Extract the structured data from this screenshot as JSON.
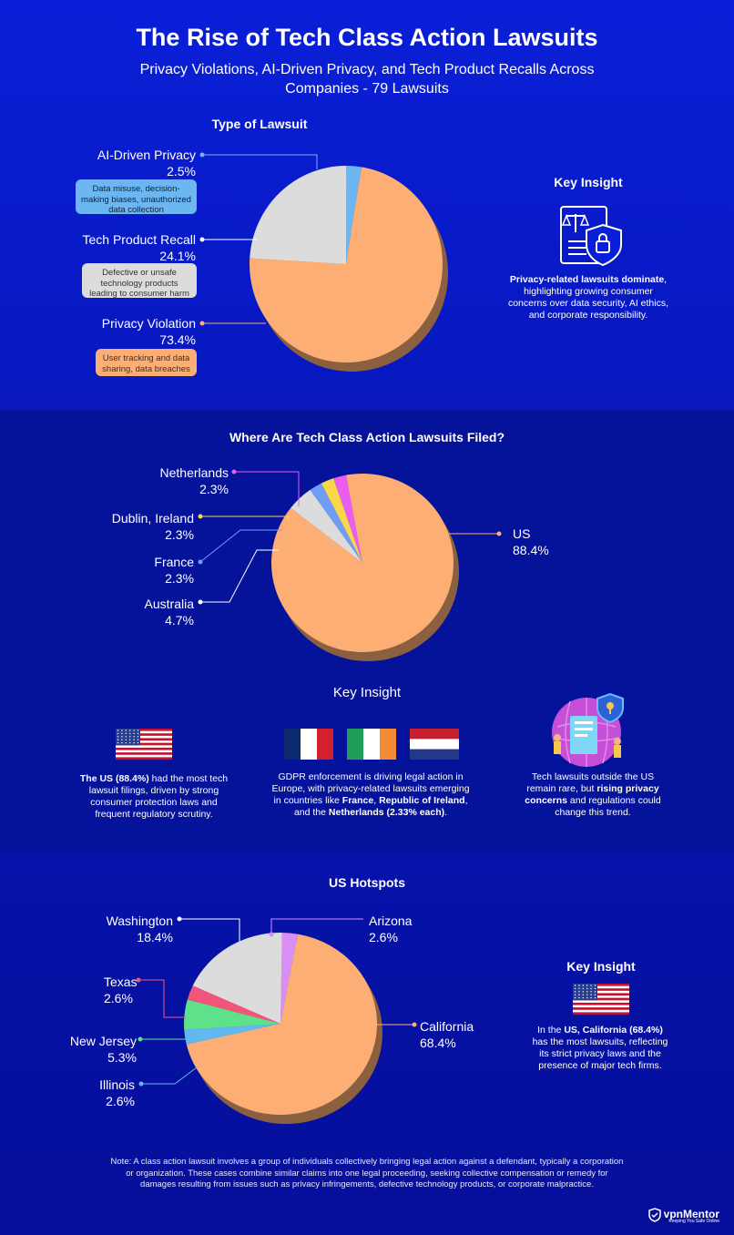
{
  "header": {
    "title": "The Rise of Tech Class Action Lawsuits",
    "subtitle": "Privacy Violations, AI-Driven Privacy, and Tech Product Recalls Across Companies - 79 Lawsuits"
  },
  "section1": {
    "title": "Type of Lawsuit",
    "insight_title": "Key Insight",
    "insight_bold": "Privacy-related lawsuits dominate",
    "insight_text": ", highlighting growing consumer concerns over data security, AI ethics, and corporate responsibility.",
    "descriptions": [
      "Data misuse, decision-making biases, unauthorized data collection",
      "Defective or unsafe technology products leading to consumer harm",
      "User tracking and data sharing, data breaches"
    ]
  },
  "section2": {
    "title": "Where Are Tech Class Action Lawsuits Filed?",
    "insight_title": "Key Insight",
    "insight1_bold": "The US (88.4%)",
    "insight1_text": " had the most tech lawsuit filings, driven by strong consumer protection laws and frequent regulatory scrutiny.",
    "insight2_a": "GDPR enforcement is driving legal action in Europe, with privacy-related lawsuits emerging in countries like ",
    "insight2_b1": "France",
    "insight2_c": ", ",
    "insight2_b2": "Republic of Ireland",
    "insight2_d": ", and the ",
    "insight2_b3": "Netherlands (2.33% each)",
    "insight2_e": ".",
    "insight3_a": "Tech lawsuits outside the US remain rare, but ",
    "insight3_bold": "rising privacy concerns",
    "insight3_b": " and regulations could change this trend."
  },
  "section3": {
    "title": "US Hotspots",
    "insight_title": "Key Insight",
    "insight_a": "In the ",
    "insight_bold": "US, California (68.4%)",
    "insight_b": " has the most lawsuits, reflecting its strict privacy laws and the presence of major tech firms."
  },
  "footer": {
    "note": "Note: A class action lawsuit involves a group of individuals collectively bringing legal action against a defendant, typically a corporation or organization. These cases combine similar claims into one legal proceeding, seeking collective compensation or remedy for damages resulting from issues such as privacy infringements, defective technology products, or corporate malpractice.",
    "brand": "vpnMentor",
    "tagline": "Keeping You Safe Online"
  },
  "chart_data": [
    {
      "type": "pie",
      "title": "Type of Lawsuit",
      "categories": [
        "AI-Driven Privacy",
        "Tech Product Recall",
        "Privacy Violation"
      ],
      "values": [
        2.5,
        24.1,
        73.4
      ],
      "labels": [
        "2.5%",
        "24.1%",
        "73.4%"
      ],
      "colors": [
        "#6cb6f2",
        "#dcdcdc",
        "#fdae74"
      ]
    },
    {
      "type": "pie",
      "title": "Where Are Tech Class Action Lawsuits Filed?",
      "categories": [
        "Netherlands",
        "Dublin, Ireland",
        "France",
        "Australia",
        "US"
      ],
      "values": [
        2.3,
        2.3,
        2.3,
        4.7,
        88.4
      ],
      "labels": [
        "2.3%",
        "2.3%",
        "2.3%",
        "4.7%",
        "88.4%"
      ],
      "colors": [
        "#e95ef0",
        "#f8d84a",
        "#6f9df5",
        "#dcdcdc",
        "#fdae74"
      ]
    },
    {
      "type": "pie",
      "title": "US Hotspots",
      "categories": [
        "Arizona",
        "Washington",
        "Texas",
        "New Jersey",
        "Illinois",
        "California"
      ],
      "values": [
        2.6,
        18.4,
        2.6,
        5.3,
        2.6,
        68.4
      ],
      "labels": [
        "2.6%",
        "18.4%",
        "2.6%",
        "5.3%",
        "2.6%",
        "68.4%"
      ],
      "colors": [
        "#d98ef5",
        "#dcdcdc",
        "#f2557c",
        "#5de28a",
        "#62b9f0",
        "#fdae74"
      ]
    }
  ]
}
